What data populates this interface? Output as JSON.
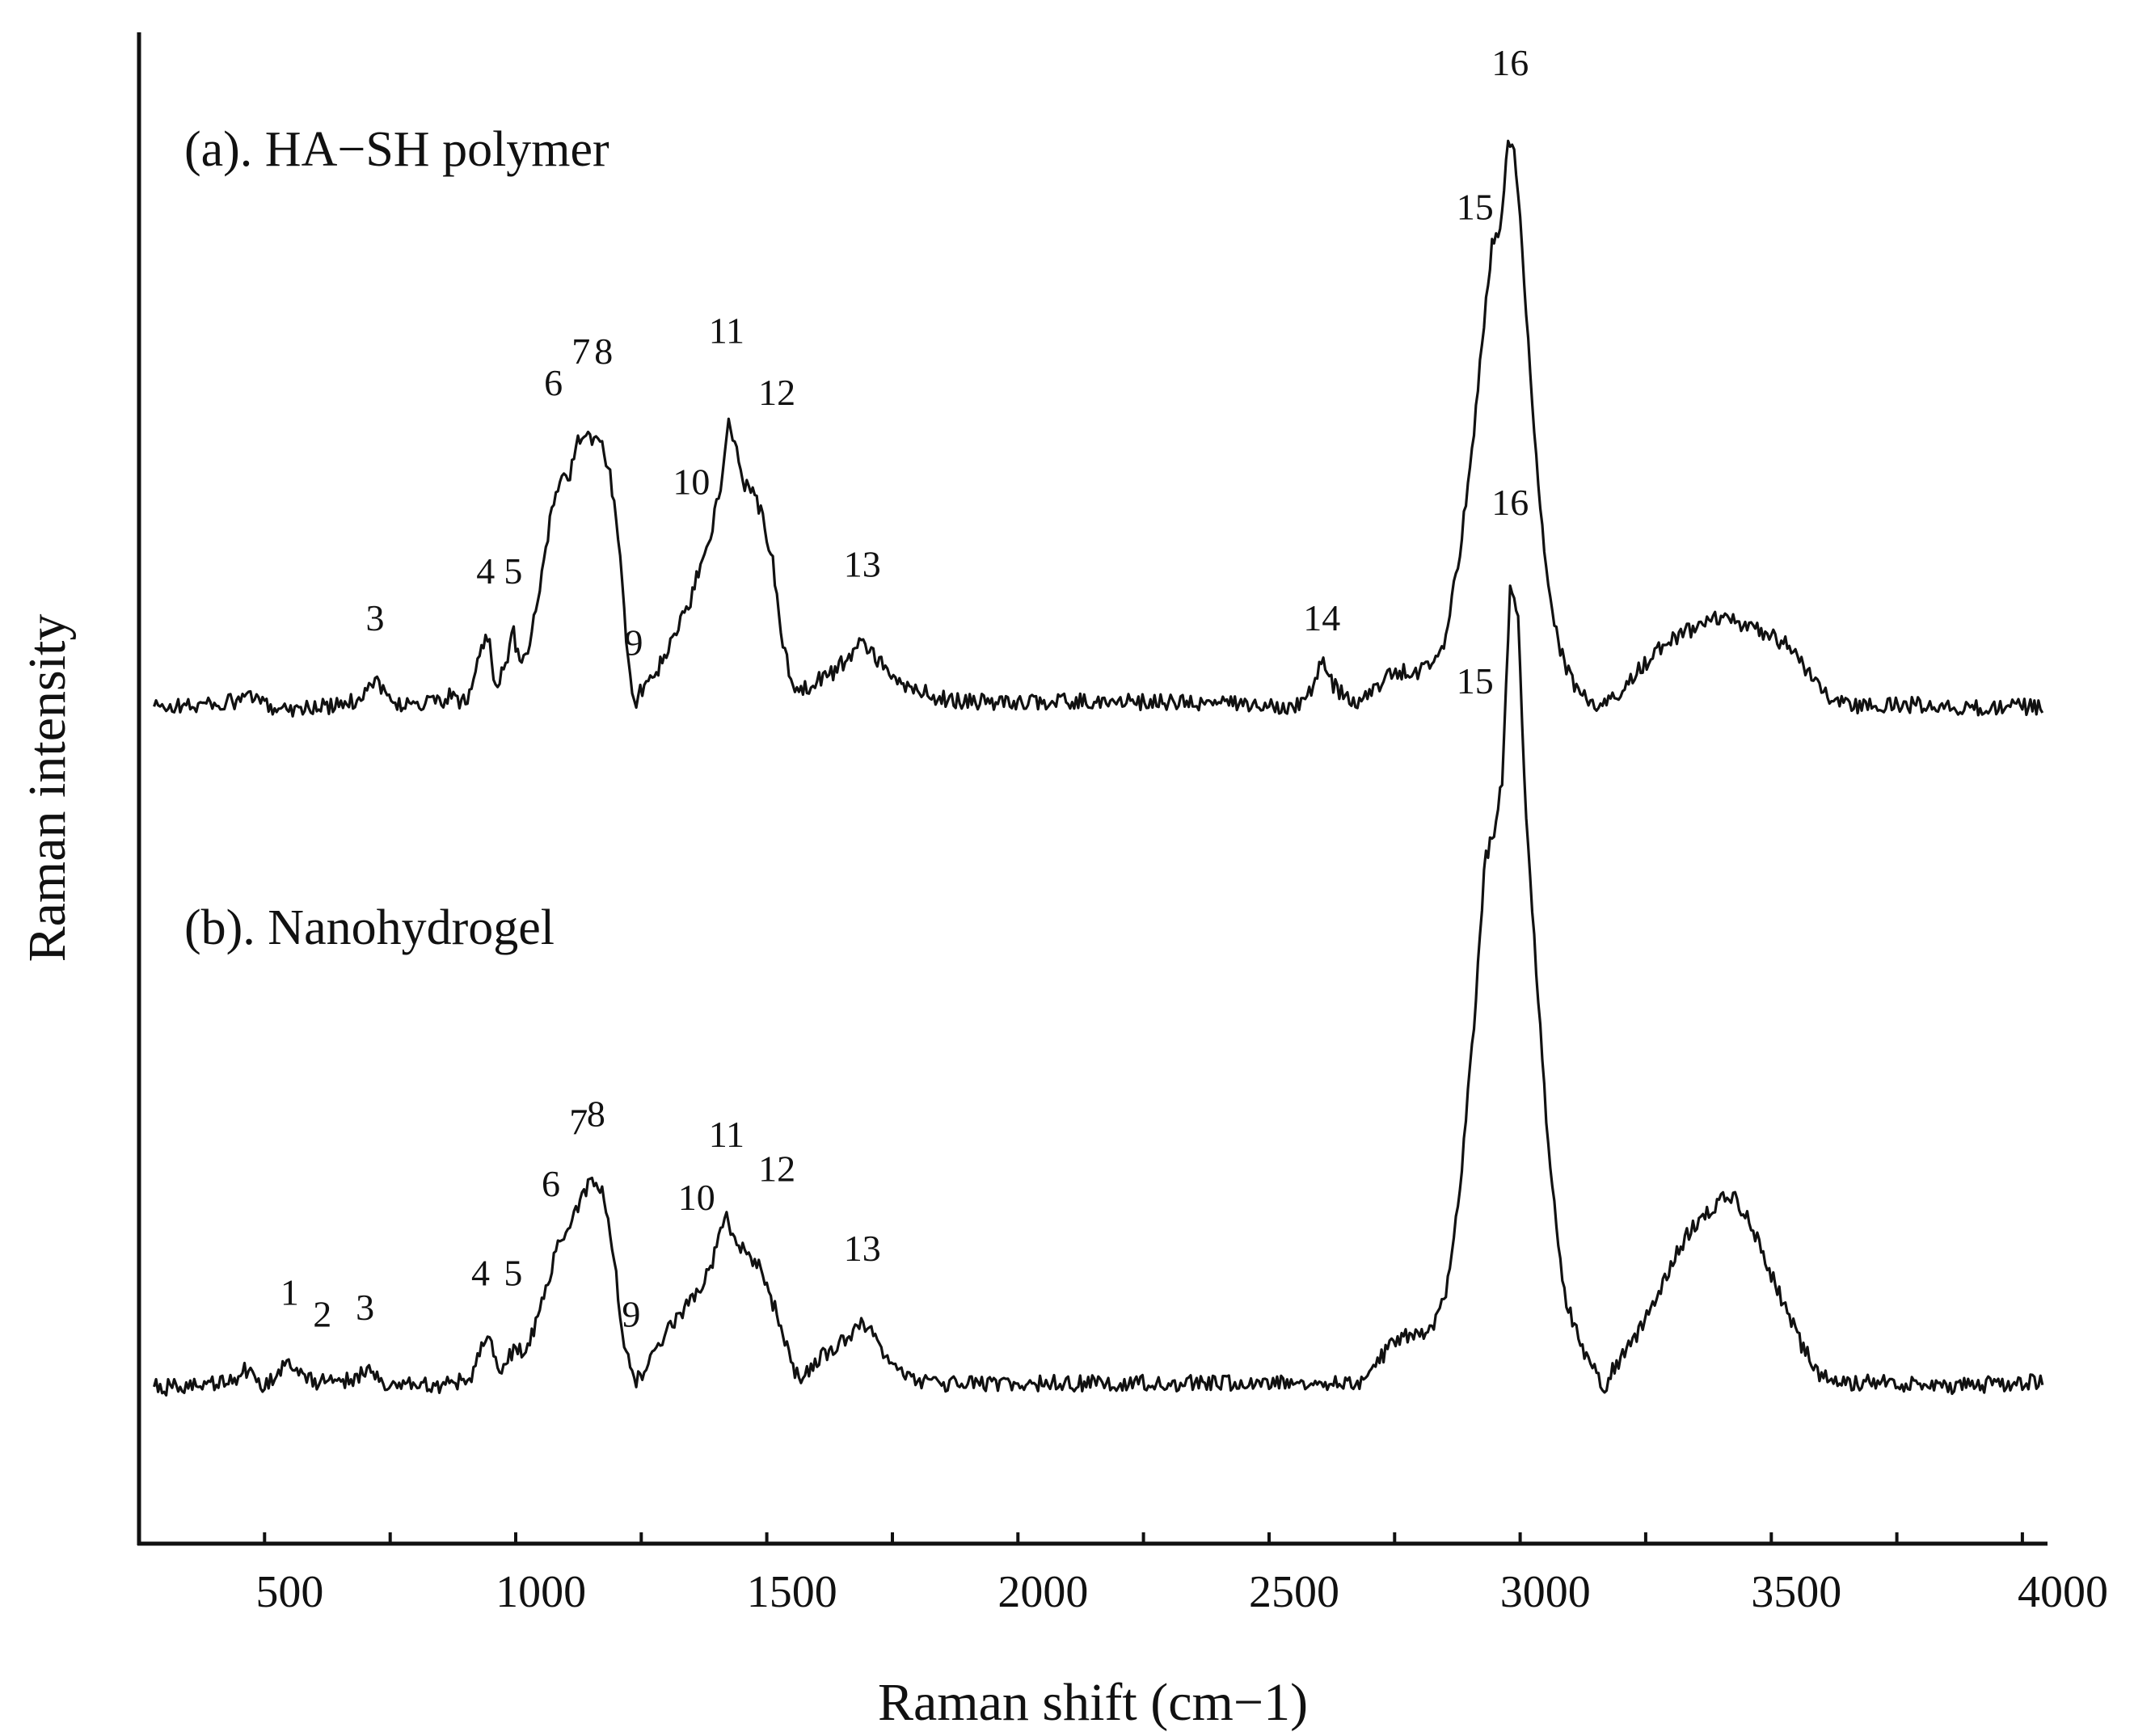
{
  "chart_data": {
    "type": "line",
    "xlabel": "Raman shift (cm−1)",
    "ylabel": "Raman intensity",
    "xlim": [
      200,
      4000
    ],
    "x_ticks": [
      500,
      1000,
      1500,
      2000,
      2500,
      3000,
      3500,
      4000
    ],
    "x_tick_labels": [
      "500",
      "1000",
      "1500",
      "2000",
      "2500",
      "3000",
      "3500",
      "4000"
    ],
    "minor_tick_step": 250,
    "ylim": [
      0,
      1
    ],
    "y_ticks": [],
    "grid": false,
    "line_color": "#111111",
    "series": [
      {
        "name": "(a). HA−SH polymer",
        "baseline": 0.55,
        "points": [
          [
            230,
            0.55
          ],
          [
            300,
            0.551
          ],
          [
            400,
            0.554
          ],
          [
            420,
            0.56
          ],
          [
            440,
            0.552
          ],
          [
            500,
            0.549
          ],
          [
            600,
            0.551
          ],
          [
            640,
            0.556
          ],
          [
            670,
            0.572
          ],
          [
            700,
            0.553
          ],
          [
            760,
            0.552
          ],
          [
            800,
            0.554
          ],
          [
            820,
            0.558
          ],
          [
            840,
            0.553
          ],
          [
            860,
            0.558
          ],
          [
            880,
            0.593
          ],
          [
            895,
            0.603
          ],
          [
            910,
            0.566
          ],
          [
            925,
            0.575
          ],
          [
            945,
            0.605
          ],
          [
            960,
            0.575
          ],
          [
            980,
            0.6
          ],
          [
            1000,
            0.64
          ],
          [
            1020,
            0.69
          ],
          [
            1040,
            0.72
          ],
          [
            1055,
            0.715
          ],
          [
            1075,
            0.745
          ],
          [
            1090,
            0.748
          ],
          [
            1105,
            0.742
          ],
          [
            1120,
            0.748
          ],
          [
            1140,
            0.715
          ],
          [
            1160,
            0.65
          ],
          [
            1175,
            0.575
          ],
          [
            1190,
            0.555
          ],
          [
            1210,
            0.57
          ],
          [
            1230,
            0.575
          ],
          [
            1250,
            0.59
          ],
          [
            1270,
            0.605
          ],
          [
            1300,
            0.628
          ],
          [
            1320,
            0.66
          ],
          [
            1340,
            0.68
          ],
          [
            1355,
            0.705
          ],
          [
            1375,
            0.76
          ],
          [
            1390,
            0.735
          ],
          [
            1405,
            0.712
          ],
          [
            1420,
            0.712
          ],
          [
            1440,
            0.69
          ],
          [
            1460,
            0.66
          ],
          [
            1480,
            0.6
          ],
          [
            1500,
            0.565
          ],
          [
            1520,
            0.562
          ],
          [
            1550,
            0.57
          ],
          [
            1580,
            0.575
          ],
          [
            1610,
            0.585
          ],
          [
            1640,
            0.6
          ],
          [
            1660,
            0.59
          ],
          [
            1700,
            0.57
          ],
          [
            1750,
            0.562
          ],
          [
            1800,
            0.556
          ],
          [
            1900,
            0.553
          ],
          [
            2000,
            0.554
          ],
          [
            2200,
            0.554
          ],
          [
            2400,
            0.552
          ],
          [
            2500,
            0.551
          ],
          [
            2530,
            0.56
          ],
          [
            2555,
            0.583
          ],
          [
            2580,
            0.565
          ],
          [
            2620,
            0.552
          ],
          [
            2650,
            0.56
          ],
          [
            2680,
            0.57
          ],
          [
            2700,
            0.575
          ],
          [
            2720,
            0.576
          ],
          [
            2740,
            0.573
          ],
          [
            2760,
            0.578
          ],
          [
            2780,
            0.585
          ],
          [
            2800,
            0.6
          ],
          [
            2830,
            0.66
          ],
          [
            2860,
            0.76
          ],
          [
            2880,
            0.84
          ],
          [
            2895,
            0.89
          ],
          [
            2910,
            0.9
          ],
          [
            2925,
            0.96
          ],
          [
            2935,
            0.96
          ],
          [
            2945,
            0.93
          ],
          [
            2960,
            0.85
          ],
          [
            2980,
            0.74
          ],
          [
            3000,
            0.65
          ],
          [
            3030,
            0.59
          ],
          [
            3060,
            0.565
          ],
          [
            3090,
            0.553
          ],
          [
            3110,
            0.548
          ],
          [
            3140,
            0.558
          ],
          [
            3180,
            0.575
          ],
          [
            3220,
            0.59
          ],
          [
            3280,
            0.605
          ],
          [
            3340,
            0.614
          ],
          [
            3400,
            0.61
          ],
          [
            3460,
            0.6
          ],
          [
            3500,
            0.59
          ],
          [
            3540,
            0.565
          ],
          [
            3580,
            0.555
          ],
          [
            3640,
            0.55
          ],
          [
            3700,
            0.552
          ],
          [
            3780,
            0.551
          ],
          [
            3860,
            0.549
          ],
          [
            3950,
            0.55
          ],
          [
            3990,
            0.551
          ]
        ]
      },
      {
        "name": "(b). Nanohydrogel",
        "baseline": 0.055,
        "points": [
          [
            230,
            0.055
          ],
          [
            300,
            0.055
          ],
          [
            380,
            0.058
          ],
          [
            410,
            0.068
          ],
          [
            430,
            0.06
          ],
          [
            450,
            0.057
          ],
          [
            470,
            0.062
          ],
          [
            500,
            0.075
          ],
          [
            520,
            0.065
          ],
          [
            540,
            0.06
          ],
          [
            560,
            0.059
          ],
          [
            580,
            0.062
          ],
          [
            600,
            0.058
          ],
          [
            640,
            0.064
          ],
          [
            660,
            0.068
          ],
          [
            690,
            0.058
          ],
          [
            750,
            0.056
          ],
          [
            820,
            0.057
          ],
          [
            860,
            0.062
          ],
          [
            885,
            0.09
          ],
          [
            900,
            0.088
          ],
          [
            915,
            0.065
          ],
          [
            935,
            0.078
          ],
          [
            950,
            0.082
          ],
          [
            965,
            0.08
          ],
          [
            990,
            0.1
          ],
          [
            1010,
            0.125
          ],
          [
            1030,
            0.155
          ],
          [
            1050,
            0.17
          ],
          [
            1070,
            0.185
          ],
          [
            1090,
            0.2
          ],
          [
            1110,
            0.205
          ],
          [
            1125,
            0.195
          ],
          [
            1145,
            0.15
          ],
          [
            1165,
            0.09
          ],
          [
            1185,
            0.057
          ],
          [
            1205,
            0.065
          ],
          [
            1230,
            0.08
          ],
          [
            1260,
            0.1
          ],
          [
            1290,
            0.115
          ],
          [
            1320,
            0.128
          ],
          [
            1345,
            0.15
          ],
          [
            1370,
            0.18
          ],
          [
            1390,
            0.16
          ],
          [
            1410,
            0.152
          ],
          [
            1430,
            0.145
          ],
          [
            1455,
            0.125
          ],
          [
            1480,
            0.095
          ],
          [
            1500,
            0.07
          ],
          [
            1520,
            0.06
          ],
          [
            1545,
            0.072
          ],
          [
            1575,
            0.082
          ],
          [
            1610,
            0.09
          ],
          [
            1640,
            0.1
          ],
          [
            1660,
            0.095
          ],
          [
            1690,
            0.075
          ],
          [
            1730,
            0.062
          ],
          [
            1780,
            0.058
          ],
          [
            1900,
            0.057
          ],
          [
            2000,
            0.058
          ],
          [
            2200,
            0.058
          ],
          [
            2400,
            0.058
          ],
          [
            2550,
            0.06
          ],
          [
            2600,
            0.057
          ],
          [
            2640,
            0.06
          ],
          [
            2680,
            0.08
          ],
          [
            2700,
            0.09
          ],
          [
            2740,
            0.095
          ],
          [
            2770,
            0.097
          ],
          [
            2800,
            0.118
          ],
          [
            2830,
            0.2
          ],
          [
            2860,
            0.33
          ],
          [
            2880,
            0.44
          ],
          [
            2900,
            0.46
          ],
          [
            2915,
            0.5
          ],
          [
            2930,
            0.64
          ],
          [
            2945,
            0.62
          ],
          [
            2960,
            0.48
          ],
          [
            2985,
            0.34
          ],
          [
            3010,
            0.21
          ],
          [
            3040,
            0.12
          ],
          [
            3070,
            0.085
          ],
          [
            3100,
            0.065
          ],
          [
            3115,
            0.053
          ],
          [
            3135,
            0.068
          ],
          [
            3170,
            0.085
          ],
          [
            3210,
            0.11
          ],
          [
            3250,
            0.145
          ],
          [
            3290,
            0.17
          ],
          [
            3330,
            0.185
          ],
          [
            3370,
            0.195
          ],
          [
            3400,
            0.18
          ],
          [
            3430,
            0.155
          ],
          [
            3470,
            0.12
          ],
          [
            3510,
            0.085
          ],
          [
            3550,
            0.063
          ],
          [
            3600,
            0.058
          ],
          [
            3700,
            0.058
          ],
          [
            3800,
            0.056
          ],
          [
            3900,
            0.057
          ],
          [
            3990,
            0.06
          ]
        ]
      }
    ],
    "peak_labels": [
      {
        "series": 0,
        "label": "3",
        "x": 670,
        "value": 0.606
      },
      {
        "series": 0,
        "label": "4",
        "x": 890,
        "value": 0.64
      },
      {
        "series": 0,
        "label": "5",
        "x": 945,
        "value": 0.64
      },
      {
        "series": 0,
        "label": "6",
        "x": 1025,
        "value": 0.777
      },
      {
        "series": 0,
        "label": "7",
        "x": 1080,
        "value": 0.8
      },
      {
        "series": 0,
        "label": "8",
        "x": 1125,
        "value": 0.8
      },
      {
        "series": 0,
        "label": "9",
        "x": 1185,
        "value": 0.588
      },
      {
        "series": 0,
        "label": "10",
        "x": 1300,
        "value": 0.705
      },
      {
        "series": 0,
        "label": "11",
        "x": 1370,
        "value": 0.815
      },
      {
        "series": 0,
        "label": "12",
        "x": 1470,
        "value": 0.77
      },
      {
        "series": 0,
        "label": "13",
        "x": 1640,
        "value": 0.645
      },
      {
        "series": 0,
        "label": "14",
        "x": 2555,
        "value": 0.606
      },
      {
        "series": 0,
        "label": "15",
        "x": 2860,
        "value": 0.905
      },
      {
        "series": 0,
        "label": "16",
        "x": 2930,
        "value": 1.01
      },
      {
        "series": 1,
        "label": "1",
        "x": 500,
        "value": 0.115
      },
      {
        "series": 1,
        "label": "2",
        "x": 565,
        "value": 0.099
      },
      {
        "series": 1,
        "label": "3",
        "x": 650,
        "value": 0.104
      },
      {
        "series": 1,
        "label": "4",
        "x": 880,
        "value": 0.129
      },
      {
        "series": 1,
        "label": "5",
        "x": 945,
        "value": 0.129
      },
      {
        "series": 1,
        "label": "6",
        "x": 1020,
        "value": 0.194
      },
      {
        "series": 1,
        "label": "7",
        "x": 1075,
        "value": 0.239
      },
      {
        "series": 1,
        "label": "8",
        "x": 1110,
        "value": 0.245
      },
      {
        "series": 1,
        "label": "9",
        "x": 1180,
        "value": 0.099
      },
      {
        "series": 1,
        "label": "10",
        "x": 1310,
        "value": 0.184
      },
      {
        "series": 1,
        "label": "11",
        "x": 1370,
        "value": 0.23
      },
      {
        "series": 1,
        "label": "12",
        "x": 1470,
        "value": 0.205
      },
      {
        "series": 1,
        "label": "13",
        "x": 1640,
        "value": 0.147
      },
      {
        "series": 1,
        "label": "15",
        "x": 2860,
        "value": 0.56
      },
      {
        "series": 1,
        "label": "16",
        "x": 2930,
        "value": 0.69
      }
    ]
  }
}
